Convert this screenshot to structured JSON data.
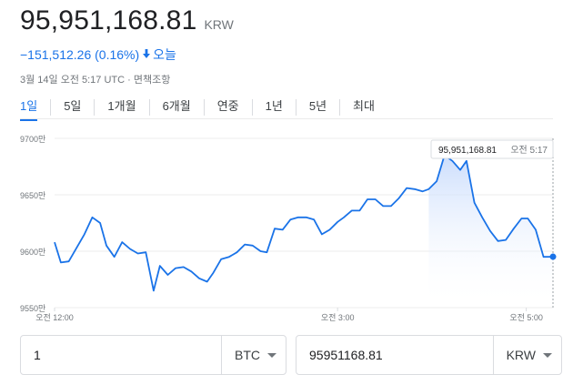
{
  "price": {
    "value": "95,951,168.81",
    "currency": "KRW"
  },
  "change": {
    "text": "−151,512.26 (0.16%)",
    "direction": "down",
    "period": "오늘",
    "color": "#1a73e8"
  },
  "meta": {
    "timestamp": "3월 14일 오전 5:17 UTC",
    "separator": "·",
    "disclaimer": "면책조항"
  },
  "tabs": [
    {
      "label": "1일",
      "active": true
    },
    {
      "label": "5일",
      "active": false
    },
    {
      "label": "1개월",
      "active": false
    },
    {
      "label": "6개월",
      "active": false
    },
    {
      "label": "연중",
      "active": false
    },
    {
      "label": "1년",
      "active": false
    },
    {
      "label": "5년",
      "active": false
    },
    {
      "label": "최대",
      "active": false
    }
  ],
  "tooltip": {
    "value": "95,951,168.81",
    "time": "오전 5:17"
  },
  "chart_data": {
    "type": "line",
    "y_tick_labels": [
      "9700만",
      "9650만",
      "9600만",
      "9550만"
    ],
    "y_ticks": [
      97000000,
      96500000,
      96000000,
      95500000
    ],
    "ylim": [
      95500000,
      97000000
    ],
    "x_tick_labels": [
      "오전 12:00",
      "오전 3:00",
      "오전 5:00"
    ],
    "x_ticks": [
      0,
      180,
      300
    ],
    "xlim": [
      0,
      317
    ],
    "grid": true,
    "line_color": "#1a73e8",
    "series": [
      {
        "x": [
          0,
          4,
          9,
          14,
          19,
          24,
          29,
          33,
          38,
          43,
          48,
          53,
          58,
          63,
          67,
          72,
          77,
          82,
          87,
          92,
          97,
          101,
          106,
          111,
          116,
          121,
          126,
          131,
          135,
          140,
          145,
          150,
          155,
          160,
          165,
          170,
          175,
          180,
          184,
          189,
          194,
          199,
          204,
          209,
          214,
          219,
          224,
          229,
          234,
          238,
          243,
          248,
          253,
          258,
          262,
          267,
          272,
          277,
          282,
          287,
          292,
          297,
          301,
          306,
          311,
          317
        ],
        "y": [
          96080000,
          95900000,
          95910000,
          96030000,
          96150000,
          96300000,
          96250000,
          96050000,
          95950000,
          96080000,
          96020000,
          95980000,
          95990000,
          95650000,
          95870000,
          95790000,
          95850000,
          95860000,
          95820000,
          95760000,
          95730000,
          95810000,
          95930000,
          95950000,
          95990000,
          96060000,
          96050000,
          96000000,
          95990000,
          96200000,
          96190000,
          96280000,
          96300000,
          96300000,
          96280000,
          96150000,
          96190000,
          96260000,
          96300000,
          96360000,
          96360000,
          96460000,
          96460000,
          96400000,
          96400000,
          96470000,
          96560000,
          96550000,
          96530000,
          96550000,
          96620000,
          96850000,
          96800000,
          96720000,
          96800000,
          96430000,
          96300000,
          96180000,
          96090000,
          96100000,
          96200000,
          96290000,
          96290000,
          96190000,
          95950000,
          95951168.81
        ]
      }
    ]
  },
  "converter": {
    "amount": "1",
    "from_unit": "BTC",
    "converted": "95951168.81",
    "to_unit": "KRW"
  }
}
